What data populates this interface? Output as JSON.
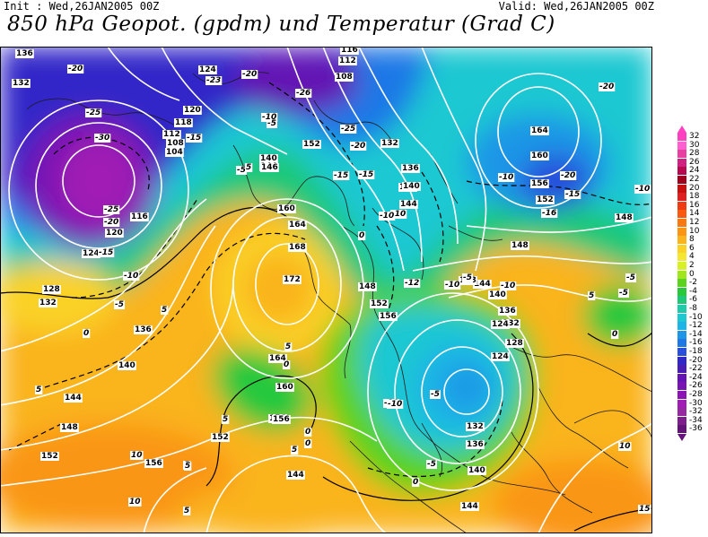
{
  "header": {
    "init": "Init : Wed,26JAN2005 00Z",
    "valid": "Valid: Wed,26JAN2005 00Z",
    "title": "850 hPa Geopot. (gpdm) und Temperatur (Grad C)"
  },
  "legend": [
    {
      "label": "32",
      "color": "#ff40c0"
    },
    {
      "label": "30",
      "color": "#ff60d0"
    },
    {
      "label": "28",
      "color": "#e840a0"
    },
    {
      "label": "26",
      "color": "#d02080"
    },
    {
      "label": "24",
      "color": "#b80850"
    },
    {
      "label": "22",
      "color": "#a00020"
    },
    {
      "label": "20",
      "color": "#c81010"
    },
    {
      "label": "18",
      "color": "#e02020"
    },
    {
      "label": "16",
      "color": "#f03c14"
    },
    {
      "label": "14",
      "color": "#fa5a10"
    },
    {
      "label": "12",
      "color": "#fa7810"
    },
    {
      "label": "10",
      "color": "#fa9614"
    },
    {
      "label": "8",
      "color": "#fab41e"
    },
    {
      "label": "6",
      "color": "#fad228"
    },
    {
      "label": "4",
      "color": "#f5e632"
    },
    {
      "label": "2",
      "color": "#d7f028"
    },
    {
      "label": "0",
      "color": "#a0e61e"
    },
    {
      "label": "-2",
      "color": "#5ad21e"
    },
    {
      "label": "-4",
      "color": "#28c83c"
    },
    {
      "label": "-6",
      "color": "#1ec878"
    },
    {
      "label": "-8",
      "color": "#1ecaa8"
    },
    {
      "label": "-10",
      "color": "#1ec8d2"
    },
    {
      "label": "-12",
      "color": "#1eb4e6"
    },
    {
      "label": "-14",
      "color": "#1e96e6"
    },
    {
      "label": "-16",
      "color": "#1e78e6"
    },
    {
      "label": "-18",
      "color": "#2850dc"
    },
    {
      "label": "-20",
      "color": "#3228c8"
    },
    {
      "label": "-22",
      "color": "#4a1eb4"
    },
    {
      "label": "-24",
      "color": "#6414b4"
    },
    {
      "label": "-26",
      "color": "#7814b4"
    },
    {
      "label": "-28",
      "color": "#8c14b4"
    },
    {
      "label": "-30",
      "color": "#a01eb4"
    },
    {
      "label": "-32",
      "color": "#9628a0"
    },
    {
      "label": "-34",
      "color": "#7d1e8c"
    },
    {
      "label": "-36",
      "color": "#641478"
    }
  ],
  "geopotential_labels": [
    {
      "text": "136"
    },
    {
      "text": "132"
    },
    {
      "text": "124"
    },
    {
      "text": "116"
    },
    {
      "text": "112"
    },
    {
      "text": "108"
    },
    {
      "text": "120"
    },
    {
      "text": "118"
    },
    {
      "text": "112"
    },
    {
      "text": "108"
    },
    {
      "text": "104"
    },
    {
      "text": "116"
    },
    {
      "text": "120"
    },
    {
      "text": "124"
    },
    {
      "text": "128"
    },
    {
      "text": "132"
    },
    {
      "text": "136"
    },
    {
      "text": "140"
    },
    {
      "text": "144"
    },
    {
      "text": "148"
    },
    {
      "text": "152"
    },
    {
      "text": "156"
    },
    {
      "text": "152"
    },
    {
      "text": "156"
    },
    {
      "text": "160"
    },
    {
      "text": "164"
    },
    {
      "text": "168"
    },
    {
      "text": "172"
    },
    {
      "text": "164"
    },
    {
      "text": "160"
    },
    {
      "text": "156"
    },
    {
      "text": "144"
    },
    {
      "text": "148"
    },
    {
      "text": "152"
    },
    {
      "text": "156"
    },
    {
      "text": "136"
    },
    {
      "text": "124"
    },
    {
      "text": "132"
    },
    {
      "text": "136"
    },
    {
      "text": "140"
    },
    {
      "text": "144"
    },
    {
      "text": "148"
    },
    {
      "text": "148"
    },
    {
      "text": "144"
    },
    {
      "text": "140"
    },
    {
      "text": "136"
    },
    {
      "text": "132"
    },
    {
      "text": "128"
    },
    {
      "text": "124"
    },
    {
      "text": "132"
    },
    {
      "text": "136"
    },
    {
      "text": "140"
    },
    {
      "text": "144"
    },
    {
      "text": "164"
    },
    {
      "text": "160"
    },
    {
      "text": "156"
    },
    {
      "text": "152"
    },
    {
      "text": "148"
    },
    {
      "text": "152"
    },
    {
      "text": "140"
    },
    {
      "text": "144"
    },
    {
      "text": "146"
    }
  ],
  "temperature_labels": [
    {
      "text": "-20"
    },
    {
      "text": "-25"
    },
    {
      "text": "-30"
    },
    {
      "text": "-25"
    },
    {
      "text": "-20"
    },
    {
      "text": "-15"
    },
    {
      "text": "-10"
    },
    {
      "text": "-5"
    },
    {
      "text": "0"
    },
    {
      "text": "5"
    },
    {
      "text": "-23"
    },
    {
      "text": "-20"
    },
    {
      "text": "-15"
    },
    {
      "text": "-10"
    },
    {
      "text": "-5"
    },
    {
      "text": "-26"
    },
    {
      "text": "-25"
    },
    {
      "text": "-20"
    },
    {
      "text": "-15"
    },
    {
      "text": "-10"
    },
    {
      "text": "-10"
    },
    {
      "text": "-15"
    },
    {
      "text": "-10"
    },
    {
      "text": "-12"
    },
    {
      "text": "-10"
    },
    {
      "text": "-10"
    },
    {
      "text": "-5"
    },
    {
      "text": "-10"
    },
    {
      "text": "-5"
    },
    {
      "text": "0"
    },
    {
      "text": "5"
    },
    {
      "text": "0"
    },
    {
      "text": "5"
    },
    {
      "text": "-20"
    },
    {
      "text": "-20"
    },
    {
      "text": "-10"
    },
    {
      "text": "-15"
    },
    {
      "text": "-16"
    },
    {
      "text": "-10"
    },
    {
      "text": "-5"
    },
    {
      "text": "-5"
    },
    {
      "text": "5"
    },
    {
      "text": "0"
    },
    {
      "text": "5"
    },
    {
      "text": "10"
    },
    {
      "text": "5"
    },
    {
      "text": "10"
    },
    {
      "text": "5"
    },
    {
      "text": "0"
    },
    {
      "text": "-5"
    },
    {
      "text": "5"
    },
    {
      "text": "0"
    },
    {
      "text": "-5"
    },
    {
      "text": "10"
    },
    {
      "text": "15"
    },
    {
      "text": "0"
    },
    {
      "text": "5"
    },
    {
      "text": "5"
    }
  ]
}
